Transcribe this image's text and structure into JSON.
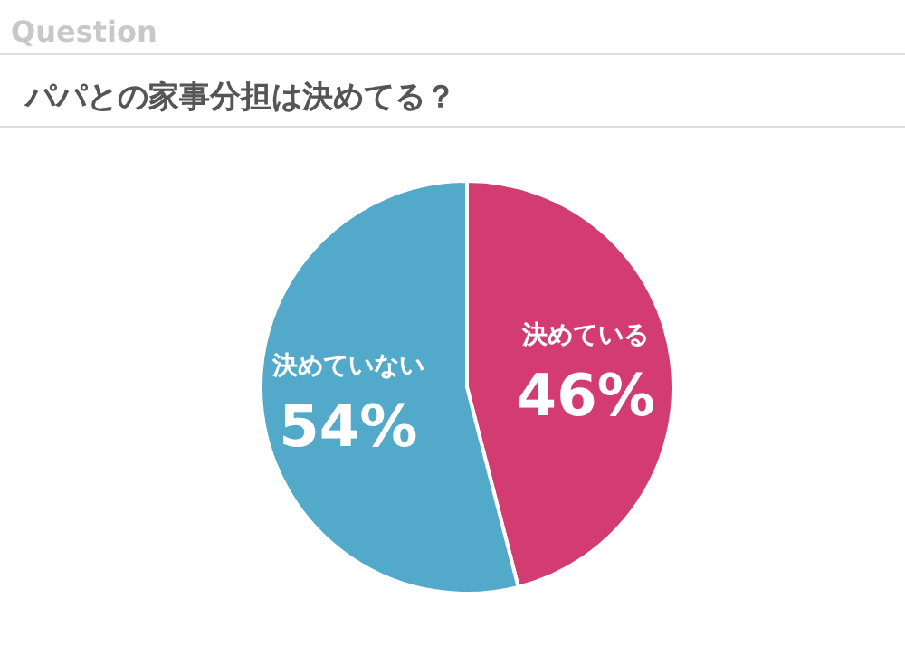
{
  "chart_data": {
    "type": "pie",
    "title": "パパとの家事分担は決めてる？",
    "annotations": [
      "Question"
    ],
    "categories": [
      "決めている",
      "決めていない"
    ],
    "values": [
      46,
      54
    ],
    "colors": [
      "#d33c71",
      "#52a9c9"
    ],
    "value_labels": [
      "46%",
      "54%"
    ]
  }
}
